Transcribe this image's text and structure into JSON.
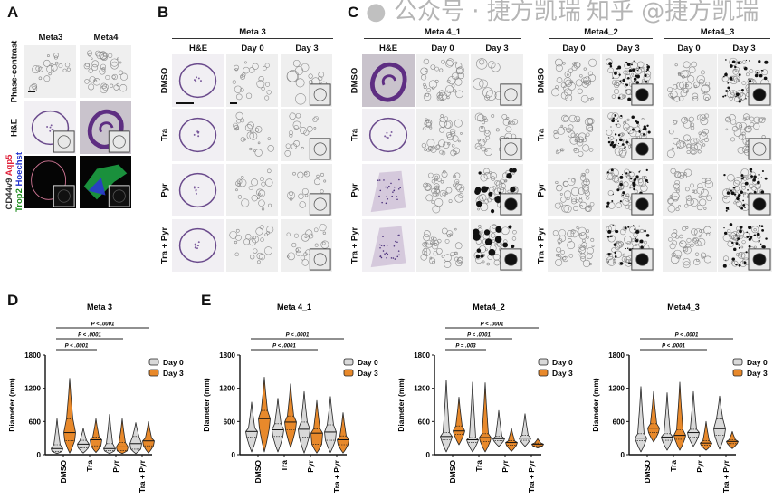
{
  "panel_a": {
    "label": "A",
    "columns": [
      "Meta3",
      "Meta4"
    ],
    "rows": [
      {
        "label": "Phase-contrast",
        "tiles": [
          "phase",
          "phase-dense"
        ]
      },
      {
        "label": "H&E",
        "tiles": [
          "he-ring",
          "he-fold"
        ]
      },
      {
        "label_parts": [
          {
            "text": "CD44v9",
            "color": "#333333"
          },
          {
            "text": " Aqp5",
            "color": "#e0213a"
          },
          {
            "text": "Trop2",
            "color": "#1a8a1a"
          },
          {
            "text": " Hoechst",
            "color": "#2233cc"
          }
        ],
        "tiles": [
          "if-ring",
          "if-green"
        ]
      }
    ]
  },
  "panel_b": {
    "label": "B",
    "group": "Meta 3",
    "columns": [
      "H&E",
      "Day 0",
      "Day 3"
    ],
    "rows": [
      {
        "label": "DMSO",
        "tiles": [
          "he-ring",
          "phase",
          "phase-big"
        ]
      },
      {
        "label": "Tra",
        "tiles": [
          "he-ring",
          "phase",
          "phase"
        ]
      },
      {
        "label": "Pyr",
        "tiles": [
          "he-ring",
          "phase",
          "phase"
        ]
      },
      {
        "label": "Tra + Pyr",
        "tiles": [
          "he-ring",
          "phase",
          "phase"
        ]
      }
    ]
  },
  "panel_c": {
    "label": "C",
    "groups": [
      {
        "name": "Meta 4_1",
        "columns": [
          "H&E",
          "Day 0",
          "Day 3"
        ],
        "rows": [
          [
            "he-fold",
            "phase-dense",
            "phase-big"
          ],
          [
            "he-ring",
            "phase-dense",
            "phase-dense"
          ],
          [
            "he-pale",
            "phase-dense",
            "dark"
          ],
          [
            "he-pale",
            "phase-dense",
            "dark"
          ]
        ]
      },
      {
        "name": "Meta4_2",
        "columns": [
          "Day 0",
          "Day 3"
        ],
        "rows": [
          [
            "phase-dense",
            "dark-small"
          ],
          [
            "phase-dense",
            "dark-small"
          ],
          [
            "phase-dense",
            "dark-small"
          ],
          [
            "phase-dense",
            "dark-small"
          ]
        ]
      },
      {
        "name": "Meta4_3",
        "columns": [
          "Day 0",
          "Day 3"
        ],
        "rows": [
          [
            "phase-dense",
            "dark-small"
          ],
          [
            "phase-dense",
            "phase-dense"
          ],
          [
            "phase-dense",
            "dark-small"
          ],
          [
            "phase-dense",
            "dark-small"
          ]
        ]
      }
    ],
    "row_labels": [
      "DMSO",
      "Tra",
      "Pyr",
      "Tra + Pyr"
    ]
  },
  "chart_data": [
    {
      "panel_label": "D",
      "type": "violin",
      "title": "Meta 3",
      "ylabel": "Diameter (mm)",
      "ylim": [
        0,
        1800
      ],
      "yticks": [
        "0",
        "600",
        "1200",
        "1800"
      ],
      "categories": [
        "DMSO",
        "Tra",
        "Pyr",
        "Tra + Pyr"
      ],
      "legend": [
        "Day 0",
        "Day 3"
      ],
      "series_colors": [
        "#d9d9d9",
        "#e8892b"
      ],
      "comparisons": [
        {
          "from": 0,
          "to": 1,
          "label": "P < .0001"
        },
        {
          "from": 0,
          "to": 2,
          "label": "P < .0001"
        },
        {
          "from": 0,
          "to": 3,
          "label": "P < .0001"
        }
      ],
      "series": [
        {
          "name": "Day 0",
          "stats": [
            [
              20,
              60,
              110,
              180,
              650
            ],
            [
              30,
              120,
              190,
              260,
              480
            ],
            [
              20,
              70,
              110,
              200,
              730
            ],
            [
              20,
              100,
              200,
              330,
              580
            ]
          ]
        },
        {
          "name": "Day 3",
          "stats": [
            [
              30,
              250,
              400,
              650,
              1380
            ],
            [
              40,
              160,
              270,
              320,
              650
            ],
            [
              20,
              70,
              140,
              220,
              650
            ],
            [
              30,
              160,
              250,
              300,
              600
            ]
          ]
        }
      ]
    },
    {
      "panel_label": "E",
      "type": "violin",
      "title": "Meta 4_1",
      "ylabel": "Diameter (mm)",
      "ylim": [
        0,
        1800
      ],
      "yticks": [
        "0",
        "600",
        "1200",
        "1800"
      ],
      "categories": [
        "DMSO",
        "Tra",
        "Pyr",
        "Tra + Pyr"
      ],
      "legend": [
        "Day 0",
        "Day 3"
      ],
      "series_colors": [
        "#d9d9d9",
        "#e8892b"
      ],
      "comparisons": [
        {
          "from": 0,
          "to": 2,
          "label": "P < .0001"
        },
        {
          "from": 0,
          "to": 3,
          "label": "P < .0001"
        }
      ],
      "series": [
        {
          "name": "Day 0",
          "stats": [
            [
              50,
              320,
              420,
              480,
              950
            ],
            [
              50,
              330,
              450,
              560,
              1020
            ],
            [
              30,
              320,
              460,
              590,
              1140
            ],
            [
              40,
              260,
              410,
              540,
              1050
            ]
          ]
        },
        {
          "name": "Day 3",
          "stats": [
            [
              50,
              480,
              650,
              800,
              1400
            ],
            [
              130,
              450,
              590,
              700,
              1280
            ],
            [
              30,
              190,
              390,
              470,
              980
            ],
            [
              30,
              180,
              270,
              340,
              760
            ]
          ]
        }
      ]
    },
    {
      "panel_label": "",
      "type": "violin",
      "title": "Meta4_2",
      "ylabel": "Diameter (mm)",
      "ylim": [
        0,
        1800
      ],
      "yticks": [
        "0",
        "600",
        "1200",
        "1800"
      ],
      "categories": [
        "DMSO",
        "Tra",
        "Pyr",
        "Tra + Pyr"
      ],
      "legend": [
        "Day 0",
        "Day 3"
      ],
      "series_colors": [
        "#d9d9d9",
        "#e8892b"
      ],
      "comparisons": [
        {
          "from": 0,
          "to": 1,
          "label": "P = .003"
        },
        {
          "from": 0,
          "to": 2,
          "label": "P < .0001"
        },
        {
          "from": 0,
          "to": 3,
          "label": "P < .0001"
        }
      ],
      "series": [
        {
          "name": "Day 0",
          "stats": [
            [
              50,
              270,
              330,
              400,
              1350
            ],
            [
              50,
              220,
              270,
              310,
              1310
            ],
            [
              150,
              250,
              290,
              330,
              800
            ],
            [
              150,
              260,
              300,
              350,
              740
            ]
          ]
        },
        {
          "name": "Day 3",
          "stats": [
            [
              180,
              370,
              430,
              520,
              1040
            ],
            [
              50,
              240,
              310,
              380,
              1300
            ],
            [
              60,
              170,
              220,
              250,
              480
            ],
            [
              120,
              160,
              190,
              210,
              290
            ]
          ]
        }
      ]
    },
    {
      "panel_label": "",
      "type": "violin",
      "title": "Meta4_3",
      "ylabel": "Diameter (mm)",
      "ylim": [
        0,
        1800
      ],
      "yticks": [
        "0",
        "600",
        "1200",
        "1800"
      ],
      "categories": [
        "DMSO",
        "Tra",
        "Pyr",
        "Tra + Pyr"
      ],
      "legend": [
        "Day 0",
        "Day 3"
      ],
      "series_colors": [
        "#d9d9d9",
        "#e8892b"
      ],
      "comparisons": [
        {
          "from": 0,
          "to": 2,
          "label": "P < .0001"
        },
        {
          "from": 0,
          "to": 3,
          "label": "P < .0001"
        }
      ],
      "series": [
        {
          "name": "Day 0",
          "stats": [
            [
              50,
              250,
              300,
              380,
              1230
            ],
            [
              80,
              260,
              320,
              380,
              1120
            ],
            [
              150,
              320,
              400,
              460,
              1140
            ],
            [
              100,
              350,
              470,
              650,
              1060
            ]
          ]
        },
        {
          "name": "Day 3",
          "stats": [
            [
              230,
              400,
              480,
              560,
              1140
            ],
            [
              80,
              280,
              350,
              450,
              1310
            ],
            [
              80,
              170,
              210,
              250,
              600
            ],
            [
              110,
              200,
              240,
              270,
              420
            ]
          ]
        }
      ]
    }
  ],
  "watermark": {
    "line1": "公众号 · 捷方凯瑞",
    "line2": "知乎 @捷方凯瑞"
  }
}
